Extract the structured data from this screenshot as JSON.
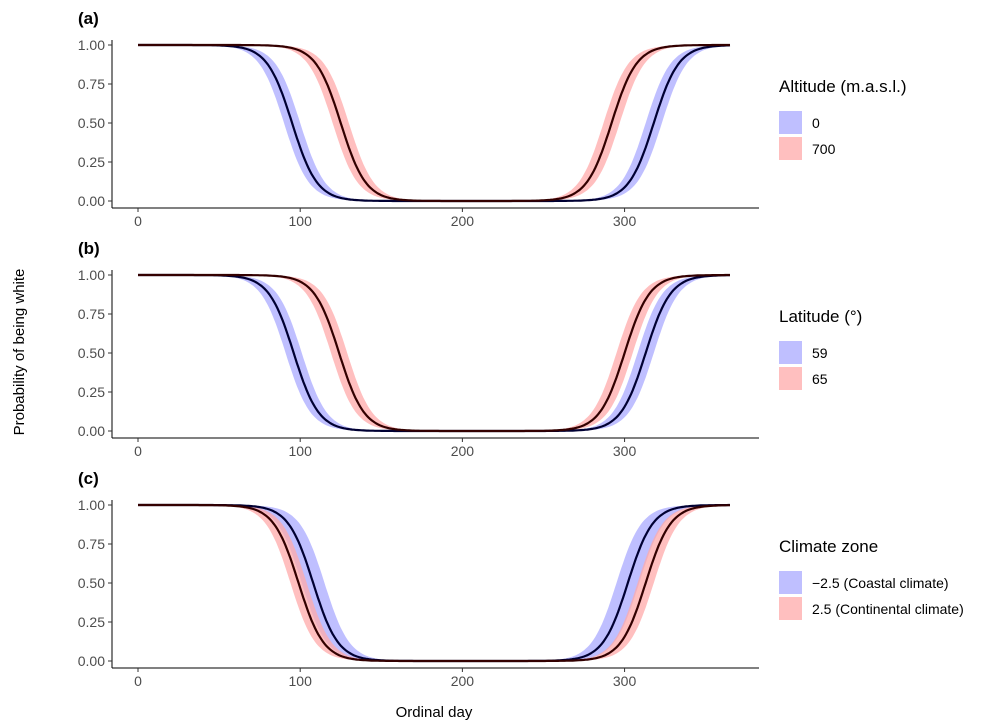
{
  "figure": {
    "ylabel": "Probability of being white",
    "xlabel": "Ordinal day"
  },
  "chart_data": [
    {
      "type": "line",
      "panel_label": "(a)",
      "legend_title": "Altitude (m.a.s.l.)",
      "xlim": [
        0,
        365
      ],
      "ylim": [
        0,
        1
      ],
      "xticks": [
        0,
        100,
        200,
        300
      ],
      "yticks": [
        0.0,
        0.25,
        0.5,
        0.75,
        1.0
      ],
      "ytick_labels": [
        "0.00",
        "0.25",
        "0.50",
        "0.75",
        "1.00"
      ],
      "grid": false,
      "legend_position": "right",
      "series": [
        {
          "name": "0",
          "color": "#aaaaff",
          "line_color": "#000033",
          "spring_midpoint": 95,
          "autumn_midpoint": 318,
          "ribbon_halfwidth_days": 5
        },
        {
          "name": "700",
          "color": "#ffaaaa",
          "line_color": "#330000",
          "spring_midpoint": 125,
          "autumn_midpoint": 292,
          "ribbon_halfwidth_days": 5
        }
      ]
    },
    {
      "type": "line",
      "panel_label": "(b)",
      "legend_title": "Latitude (°)",
      "xlim": [
        0,
        365
      ],
      "ylim": [
        0,
        1
      ],
      "xticks": [
        0,
        100,
        200,
        300
      ],
      "yticks": [
        0.0,
        0.25,
        0.5,
        0.75,
        1.0
      ],
      "ytick_labels": [
        "0.00",
        "0.25",
        "0.50",
        "0.75",
        "1.00"
      ],
      "grid": false,
      "legend_position": "right",
      "series": [
        {
          "name": "59",
          "color": "#aaaaff",
          "line_color": "#000033",
          "spring_midpoint": 96,
          "autumn_midpoint": 313,
          "ribbon_halfwidth_days": 5
        },
        {
          "name": "65",
          "color": "#ffaaaa",
          "line_color": "#330000",
          "spring_midpoint": 124,
          "autumn_midpoint": 300,
          "ribbon_halfwidth_days": 5
        }
      ]
    },
    {
      "type": "line",
      "panel_label": "(c)",
      "legend_title": "Climate zone",
      "xlim": [
        0,
        365
      ],
      "ylim": [
        0,
        1
      ],
      "xticks": [
        0,
        100,
        200,
        300
      ],
      "yticks": [
        0.0,
        0.25,
        0.5,
        0.75,
        1.0
      ],
      "ytick_labels": [
        "0.00",
        "0.25",
        "0.50",
        "0.75",
        "1.00"
      ],
      "grid": false,
      "legend_position": "right",
      "series": [
        {
          "name": "−2.5 (Coastal climate)",
          "color": "#aaaaff",
          "line_color": "#000033",
          "spring_midpoint": 108,
          "autumn_midpoint": 302,
          "ribbon_halfwidth_days": 7
        },
        {
          "name": "2.5 (Continental climate)",
          "color": "#ffaaaa",
          "line_color": "#330000",
          "spring_midpoint": 99,
          "autumn_midpoint": 313,
          "ribbon_halfwidth_days": 5
        }
      ]
    }
  ]
}
